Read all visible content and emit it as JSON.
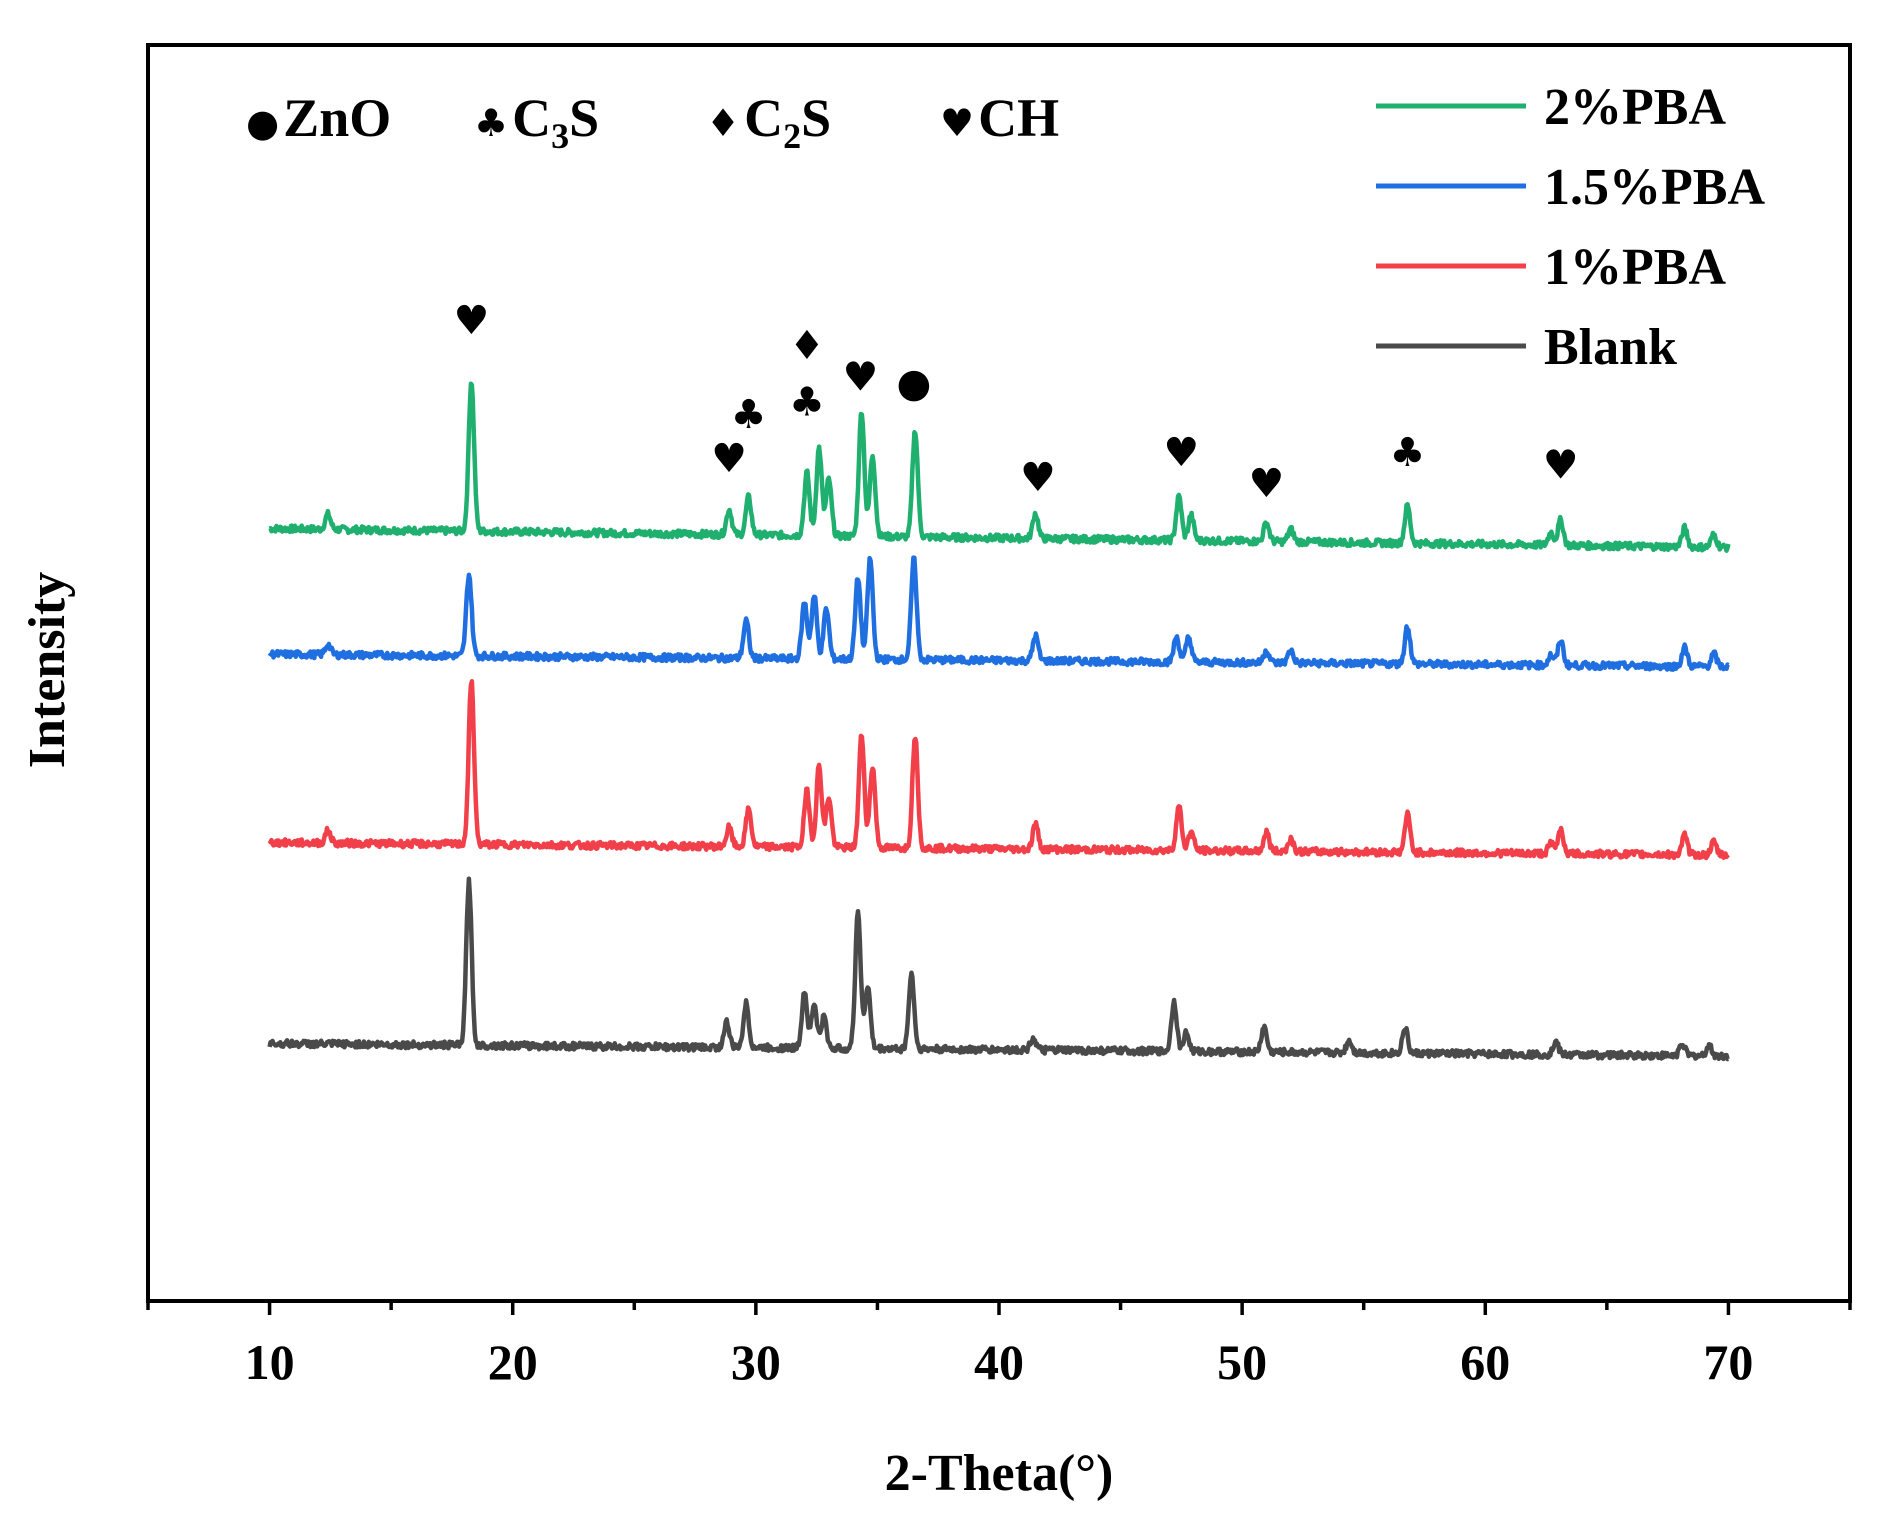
{
  "chart_data": {
    "type": "line",
    "title": "",
    "xlabel": "2-Theta(°)",
    "ylabel": "Intensity",
    "xlim": [
      5,
      75
    ],
    "ylim": [
      0,
      100
    ],
    "xticks": [
      10,
      20,
      30,
      40,
      50,
      60,
      70
    ],
    "xtick_labels": [
      "10",
      "20",
      "30",
      "40",
      "50",
      "60",
      "70"
    ],
    "grid": false,
    "y_tick_labels_shown": false,
    "legend": {
      "position": "top-right",
      "entries": [
        {
          "label": "2%PBA",
          "color": "#1faf6e"
        },
        {
          "label": "1.5%PBA",
          "color": "#1f6fe0"
        },
        {
          "label": "1%PBA",
          "color": "#f2404a"
        },
        {
          "label": "Blank",
          "color": "#4a4a4a"
        }
      ]
    },
    "phase_key": [
      {
        "symbol": "●",
        "name": "ZnO"
      },
      {
        "symbol": "♣",
        "name": "C",
        "sub": "3",
        "suffix": "S"
      },
      {
        "symbol": "♦",
        "name": "C",
        "sub": "2",
        "suffix": "S"
      },
      {
        "symbol": "♥",
        "name": "CH"
      }
    ],
    "series": [
      {
        "name": "2%PBA",
        "color": "#1faf6e",
        "baseline_start": 61.5,
        "baseline_end": 60.0,
        "peaks": [
          [
            12.4,
            1.2
          ],
          [
            18.3,
            12.0
          ],
          [
            28.9,
            2.0
          ],
          [
            29.7,
            3.0
          ],
          [
            32.1,
            5.0
          ],
          [
            32.6,
            7.0
          ],
          [
            33.0,
            4.5
          ],
          [
            34.35,
            10.0
          ],
          [
            34.8,
            6.5
          ],
          [
            36.55,
            8.5
          ],
          [
            41.5,
            2.0
          ],
          [
            47.4,
            3.5
          ],
          [
            47.9,
            2.0
          ],
          [
            51.0,
            1.5
          ],
          [
            52.0,
            1.0
          ],
          [
            56.8,
            3.0
          ],
          [
            62.7,
            1.0
          ],
          [
            63.1,
            2.0
          ],
          [
            68.2,
            1.5
          ],
          [
            69.4,
            1.0
          ]
        ]
      },
      {
        "name": "1.5%PBA",
        "color": "#1f6fe0",
        "baseline_start": 51.5,
        "baseline_end": 50.5,
        "peaks": [
          [
            12.4,
            0.8
          ],
          [
            18.2,
            6.5
          ],
          [
            29.6,
            3.0
          ],
          [
            32.0,
            4.5
          ],
          [
            32.4,
            5.0
          ],
          [
            32.9,
            4.0
          ],
          [
            34.2,
            6.5
          ],
          [
            34.7,
            8.0
          ],
          [
            36.5,
            8.0
          ],
          [
            41.5,
            2.0
          ],
          [
            47.3,
            2.0
          ],
          [
            47.8,
            2.0
          ],
          [
            51.0,
            1.0
          ],
          [
            52.0,
            1.0
          ],
          [
            56.8,
            3.0
          ],
          [
            62.7,
            0.8
          ],
          [
            63.1,
            2.0
          ],
          [
            68.2,
            1.5
          ],
          [
            69.4,
            1.0
          ]
        ]
      },
      {
        "name": "1%PBA",
        "color": "#f2404a",
        "baseline_start": 36.5,
        "baseline_end": 35.5,
        "peaks": [
          [
            12.4,
            1.0
          ],
          [
            18.3,
            13.0
          ],
          [
            28.9,
            1.5
          ],
          [
            29.7,
            3.0
          ],
          [
            32.1,
            4.5
          ],
          [
            32.6,
            6.5
          ],
          [
            33.0,
            4.0
          ],
          [
            34.35,
            9.0
          ],
          [
            34.8,
            6.5
          ],
          [
            36.55,
            9.0
          ],
          [
            41.5,
            2.0
          ],
          [
            47.4,
            3.5
          ],
          [
            47.9,
            1.5
          ],
          [
            51.0,
            1.5
          ],
          [
            52.0,
            1.0
          ],
          [
            56.8,
            3.0
          ],
          [
            62.7,
            0.8
          ],
          [
            63.1,
            2.0
          ],
          [
            68.2,
            1.5
          ],
          [
            69.4,
            1.0
          ]
        ]
      },
      {
        "name": "Blank",
        "color": "#4a4a4a",
        "baseline_start": 20.5,
        "baseline_end": 19.5,
        "peaks": [
          [
            18.2,
            13.0
          ],
          [
            28.8,
            2.0
          ],
          [
            29.6,
            3.5
          ],
          [
            32.0,
            4.5
          ],
          [
            32.4,
            3.5
          ],
          [
            32.8,
            2.5
          ],
          [
            34.2,
            11.0
          ],
          [
            34.6,
            5.0
          ],
          [
            36.4,
            6.0
          ],
          [
            41.4,
            1.0
          ],
          [
            47.2,
            4.0
          ],
          [
            47.7,
            1.5
          ],
          [
            50.9,
            2.0
          ],
          [
            54.4,
            1.0
          ],
          [
            56.7,
            2.0
          ],
          [
            62.9,
            1.0
          ],
          [
            68.1,
            1.0
          ],
          [
            69.2,
            0.8
          ]
        ]
      }
    ],
    "annotations": [
      {
        "symbol": "♥",
        "x": 18.3,
        "y": 77.0
      },
      {
        "symbol": "♥",
        "x": 28.9,
        "y": 66.0
      },
      {
        "symbol": "♣",
        "x": 29.7,
        "y": 69.5
      },
      {
        "symbol": "♦",
        "x": 32.1,
        "y": 75.0
      },
      {
        "symbol": "♣",
        "x": 32.1,
        "y": 70.5
      },
      {
        "symbol": "♥",
        "x": 34.3,
        "y": 72.5
      },
      {
        "symbol": "●",
        "x": 36.5,
        "y": 72.0
      },
      {
        "symbol": "♥",
        "x": 41.6,
        "y": 64.5
      },
      {
        "symbol": "♥",
        "x": 47.5,
        "y": 66.5
      },
      {
        "symbol": "♥",
        "x": 51.0,
        "y": 64.0
      },
      {
        "symbol": "♣",
        "x": 56.8,
        "y": 66.5
      },
      {
        "symbol": "♥",
        "x": 63.1,
        "y": 65.5
      }
    ]
  }
}
